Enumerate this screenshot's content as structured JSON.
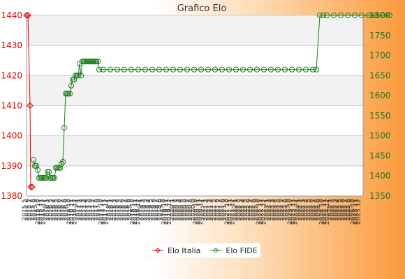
{
  "chart_data": {
    "type": "line",
    "title": "Grafico Elo",
    "legend_position": "bottom-center",
    "grid": true,
    "x_tick_labels": [
      "2015 5",
      "2015 6",
      "2015 7",
      "2015 8",
      "2015 9",
      "2015 10",
      "2015 11",
      "2015 12",
      "2016 1",
      "2016 2",
      "2016 3",
      "2016 4",
      "2016 5",
      "2016 6",
      "2016 7",
      "2016 8",
      "2016 9",
      "2016 10",
      "2016 11",
      "2016 12",
      "2017 1",
      "2017 2",
      "2017 3",
      "2017 4",
      "2017 5",
      "2017 6",
      "2017 7",
      "2017 8",
      "2017 9",
      "2017 10",
      "2017 11",
      "2017 12",
      "2018 1",
      "2018 2",
      "2018 3",
      "2018 4",
      "2018 5",
      "2018 6",
      "2018 7",
      "2018 8",
      "2018 9",
      "2018 10",
      "2018 11",
      "2018 12",
      "2019 1",
      "2019 2",
      "2019 3",
      "2019 4",
      "2019 5",
      "2019 6",
      "2019 7",
      "2019 8",
      "2019 9",
      "2019 10",
      "2019 11",
      "2019 12",
      "2020 1",
      "2020 2",
      "2020 3",
      "2020 4",
      "2020 5",
      "2020 6",
      "2020 7",
      "2020 8",
      "2020 9",
      "2020 10",
      "2020 11",
      "2020 12",
      "2021 1",
      "2021 2",
      "2021 3",
      "2021 4",
      "2021 5",
      "2021 6",
      "2021 7",
      "2021 8",
      "2021 9",
      "2021 10",
      "2021 11",
      "2021 12",
      "2022 1",
      "2022 2",
      "2022 3",
      "2022 4",
      "2022 5",
      "2022 6",
      "2022 7",
      "2022 8",
      "2022 9",
      "2022 10",
      "2022 11",
      "2022 12",
      "2023 1",
      "2023 2",
      "2023 3",
      "2023 4",
      "2023 5",
      "2023 6",
      "2023 7",
      "2023 8",
      "2023 9",
      "2023 10",
      "2023 11",
      "2023 12",
      "2024 1",
      "2024 2",
      "2024 3",
      "2024 4",
      "2024 5",
      "2024 6",
      "2024 7",
      "2024 8",
      "2024 9",
      "2024 10",
      "2024 11",
      "2024 12",
      "2025 1",
      "2025 2",
      "2025 3",
      "2025 4",
      "2025 5",
      "2025 6",
      "2025 7",
      "2025 8",
      "2025 9",
      "2025 10",
      "2025 11",
      "2025 12"
    ],
    "y_left": {
      "ylim": [
        1380,
        1440
      ],
      "ticks": [
        1380,
        1390,
        1400,
        1410,
        1420,
        1430,
        1440
      ],
      "color": "#dd0000"
    },
    "y_right": {
      "ylim": [
        1350,
        1800
      ],
      "ticks": [
        1350,
        1400,
        1450,
        1500,
        1550,
        1600,
        1650,
        1700,
        1750,
        1800
      ],
      "color": "#1d7a1d"
    },
    "series": [
      {
        "name": "Elo Italia",
        "axis": "left",
        "color": "#dd0000",
        "points": [
          [
            0,
            1440
          ],
          [
            2,
            1440
          ],
          [
            5,
            1410
          ],
          [
            6,
            1383
          ],
          [
            8,
            1383
          ]
        ]
      },
      {
        "name": "Elo FIDE",
        "axis": "right",
        "color": "#1d7a1d",
        "points": [
          [
            10,
            1440
          ],
          [
            12,
            1425
          ],
          [
            14,
            1425
          ],
          [
            16,
            1415
          ],
          [
            18,
            1395
          ],
          [
            20,
            1395
          ],
          [
            22,
            1395
          ],
          [
            24,
            1395
          ],
          [
            26,
            1395
          ],
          [
            28,
            1395
          ],
          [
            30,
            1410
          ],
          [
            32,
            1410
          ],
          [
            34,
            1395
          ],
          [
            36,
            1395
          ],
          [
            38,
            1395
          ],
          [
            40,
            1395
          ],
          [
            42,
            1420
          ],
          [
            44,
            1420
          ],
          [
            46,
            1420
          ],
          [
            48,
            1420
          ],
          [
            50,
            1430
          ],
          [
            52,
            1435
          ],
          [
            54,
            1520
          ],
          [
            56,
            1605
          ],
          [
            58,
            1605
          ],
          [
            60,
            1605
          ],
          [
            62,
            1605
          ],
          [
            64,
            1625
          ],
          [
            66,
            1640
          ],
          [
            68,
            1640
          ],
          [
            70,
            1650
          ],
          [
            72,
            1650
          ],
          [
            74,
            1650
          ],
          [
            76,
            1680
          ],
          [
            78,
            1650
          ],
          [
            80,
            1685
          ],
          [
            82,
            1685
          ],
          [
            84,
            1685
          ],
          [
            86,
            1685
          ],
          [
            88,
            1685
          ],
          [
            90,
            1685
          ],
          [
            92,
            1685
          ],
          [
            94,
            1685
          ],
          [
            96,
            1685
          ],
          [
            98,
            1685
          ],
          [
            100,
            1685
          ],
          [
            102,
            1685
          ],
          [
            104,
            1665
          ],
          [
            110,
            1665
          ],
          [
            120,
            1665
          ],
          [
            130,
            1665
          ],
          [
            140,
            1665
          ],
          [
            150,
            1665
          ],
          [
            160,
            1665
          ],
          [
            170,
            1665
          ],
          [
            180,
            1665
          ],
          [
            190,
            1665
          ],
          [
            200,
            1665
          ],
          [
            210,
            1665
          ],
          [
            220,
            1665
          ],
          [
            230,
            1665
          ],
          [
            240,
            1665
          ],
          [
            250,
            1665
          ],
          [
            260,
            1665
          ],
          [
            270,
            1665
          ],
          [
            280,
            1665
          ],
          [
            290,
            1665
          ],
          [
            300,
            1665
          ],
          [
            310,
            1665
          ],
          [
            320,
            1665
          ],
          [
            330,
            1665
          ],
          [
            340,
            1665
          ],
          [
            350,
            1665
          ],
          [
            360,
            1665
          ],
          [
            370,
            1665
          ],
          [
            380,
            1665
          ],
          [
            390,
            1665
          ],
          [
            400,
            1665
          ],
          [
            410,
            1665
          ],
          [
            415,
            1665
          ],
          [
            420,
            1800
          ],
          [
            425,
            1800
          ],
          [
            430,
            1800
          ],
          [
            440,
            1800
          ],
          [
            450,
            1800
          ],
          [
            460,
            1800
          ],
          [
            470,
            1800
          ],
          [
            480,
            1800
          ],
          [
            490,
            1800
          ],
          [
            500,
            1800
          ],
          [
            510,
            1800
          ],
          [
            520,
            1800
          ]
        ]
      }
    ]
  }
}
